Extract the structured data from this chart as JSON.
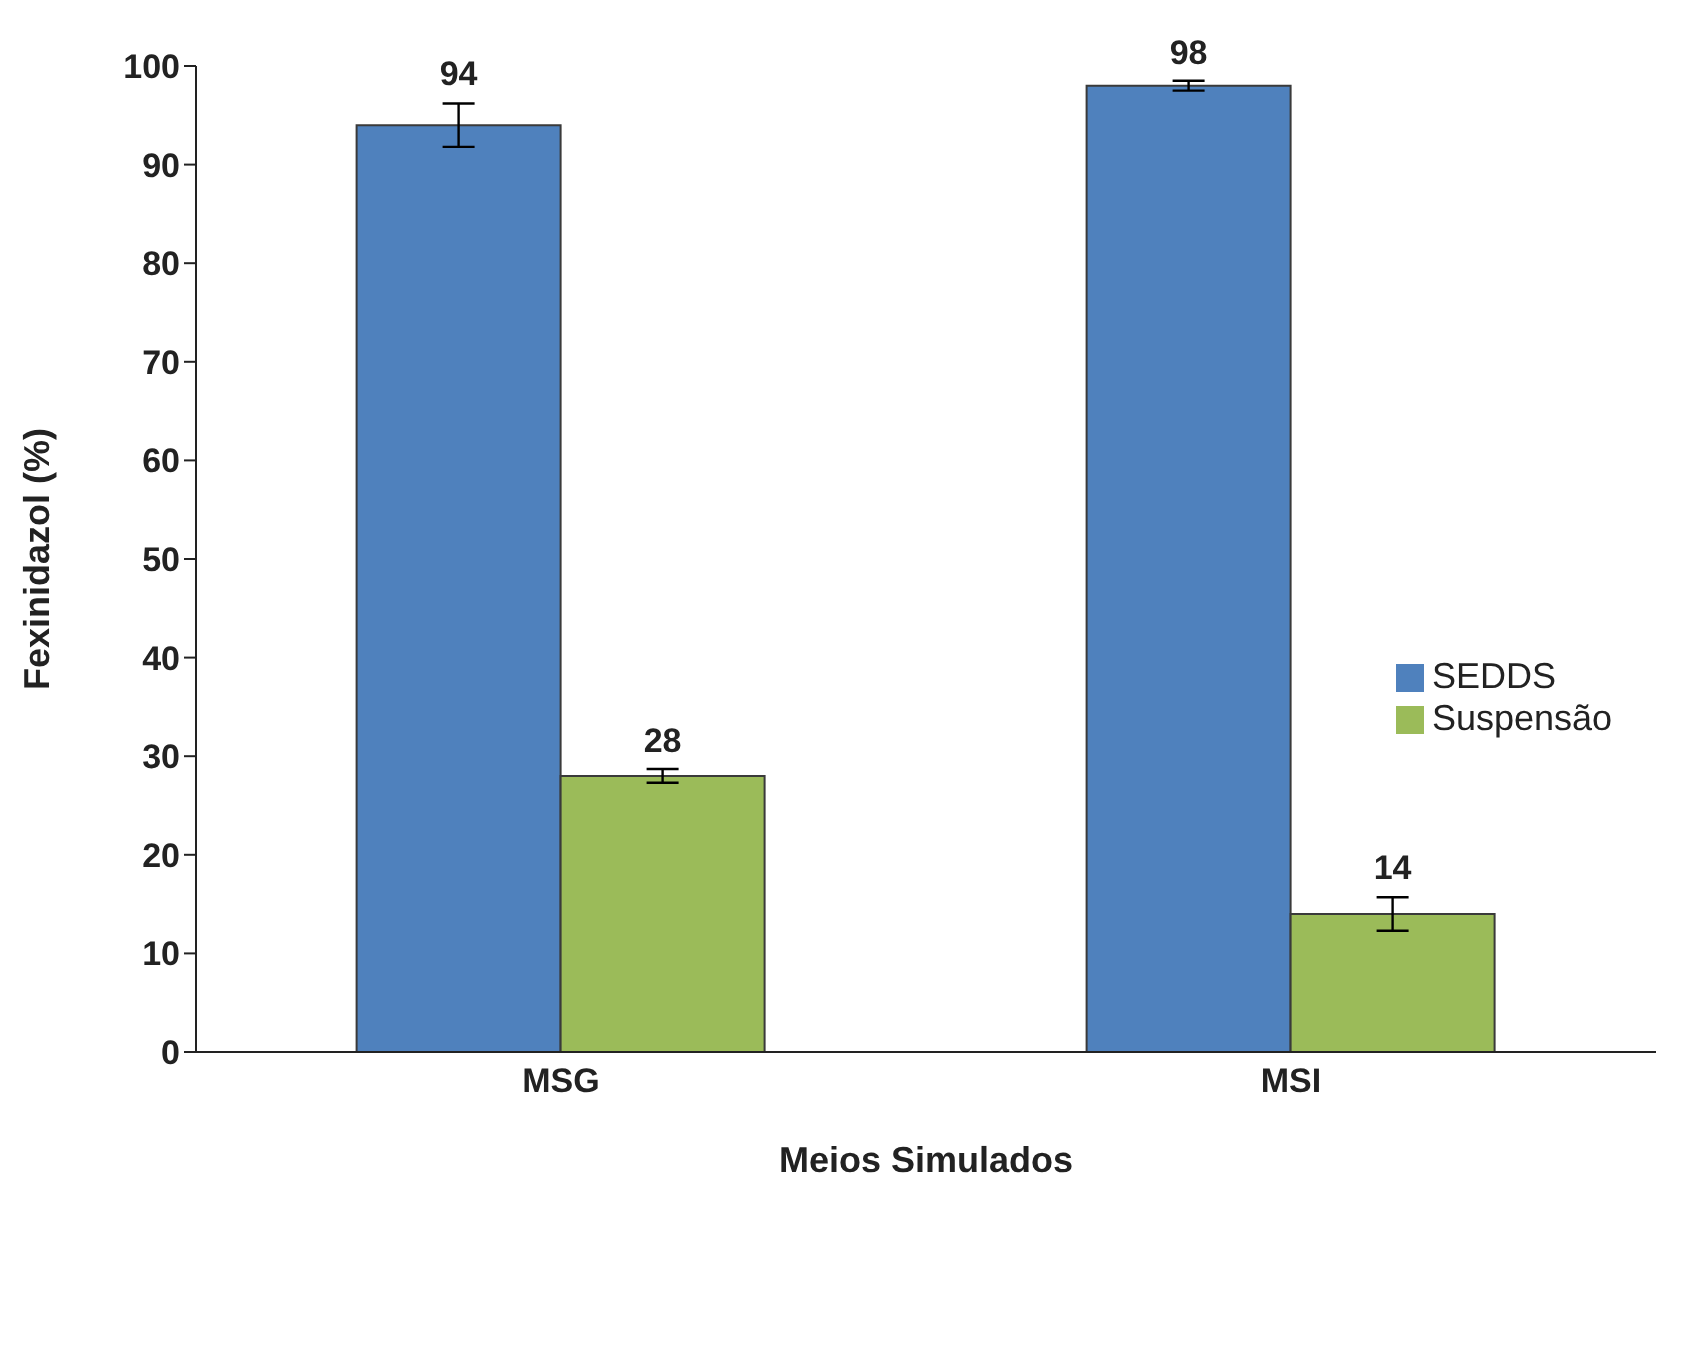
{
  "chart_data": {
    "type": "bar",
    "xlabel": "Meios Simulados",
    "ylabel": "Fexinidazol  (%)",
    "categories": [
      "MSG",
      "MSI"
    ],
    "series": [
      {
        "name": "SEDDS",
        "color": "#4f81bd",
        "values": [
          94,
          98
        ],
        "errors": [
          2.2,
          0.5
        ]
      },
      {
        "name": "Suspensão",
        "color": "#9bbb59",
        "values": [
          28,
          14
        ],
        "errors": [
          0.7,
          1.7
        ]
      }
    ],
    "ylim": [
      0,
      100
    ],
    "yticks": [
      0,
      10,
      20,
      30,
      40,
      50,
      60,
      70,
      80,
      90,
      100
    ],
    "grid": false,
    "legend": "right",
    "data_labels": true
  }
}
